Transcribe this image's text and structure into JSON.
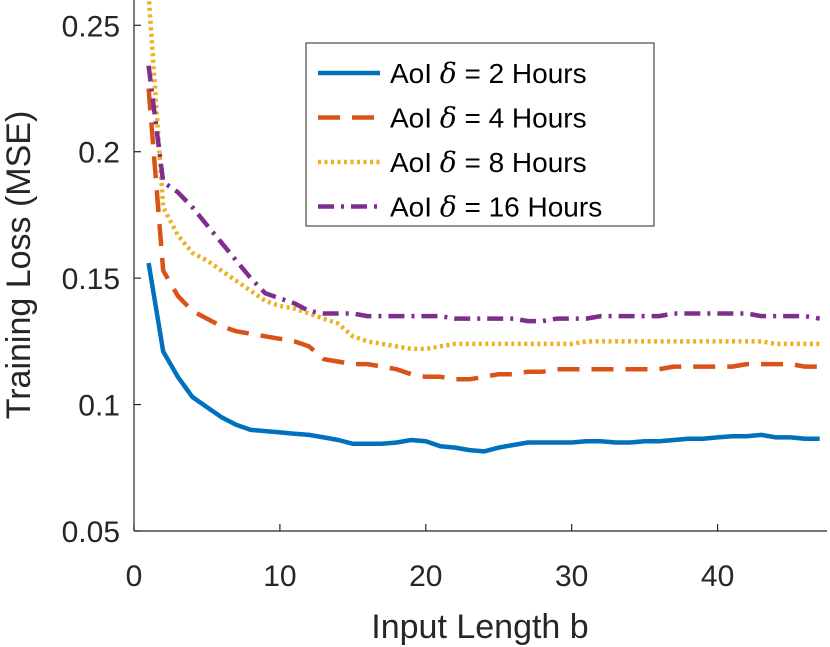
{
  "chart_data": {
    "type": "line",
    "title": "",
    "xlabel": "Input Length b",
    "ylabel": "Training Loss (MSE)",
    "xlim": [
      0,
      47.5
    ],
    "ylim": [
      0.05,
      0.26
    ],
    "xticks": [
      0,
      10,
      20,
      30,
      40
    ],
    "yticks": [
      0.05,
      0.1,
      0.15,
      0.2,
      0.25
    ],
    "xtick_labels": [
      "0",
      "10",
      "20",
      "30",
      "40"
    ],
    "ytick_labels": [
      "0.05",
      "0.1",
      "0.15",
      "0.2",
      "0.25"
    ],
    "legend_position": "top-right",
    "x": [
      1,
      2,
      3,
      4,
      5,
      6,
      7,
      8,
      9,
      10,
      11,
      12,
      13,
      14,
      15,
      16,
      17,
      18,
      19,
      20,
      21,
      22,
      23,
      24,
      25,
      26,
      27,
      28,
      29,
      30,
      31,
      32,
      33,
      34,
      35,
      36,
      37,
      38,
      39,
      40,
      41,
      42,
      43,
      44,
      45,
      46,
      47
    ],
    "series": [
      {
        "name_prefix": "AoI",
        "symbol": "δ",
        "name_suffix": "= 2 Hours",
        "color": "#0072BD",
        "dash": "solid",
        "values": [
          0.156,
          0.121,
          0.111,
          0.103,
          0.099,
          0.095,
          0.092,
          0.09,
          0.0895,
          0.089,
          0.0885,
          0.088,
          0.087,
          0.086,
          0.0845,
          0.0845,
          0.0845,
          0.085,
          0.086,
          0.0855,
          0.0835,
          0.083,
          0.082,
          0.0815,
          0.083,
          0.084,
          0.085,
          0.085,
          0.085,
          0.085,
          0.0855,
          0.0855,
          0.085,
          0.085,
          0.0855,
          0.0855,
          0.086,
          0.0865,
          0.0865,
          0.087,
          0.0875,
          0.0875,
          0.088,
          0.087,
          0.087,
          0.0865,
          0.0865
        ]
      },
      {
        "name_prefix": "AoI",
        "symbol": "δ",
        "name_suffix": "= 4 Hours",
        "color": "#D95319",
        "dash": "dashed",
        "values": [
          0.225,
          0.153,
          0.143,
          0.137,
          0.134,
          0.131,
          0.129,
          0.128,
          0.127,
          0.126,
          0.125,
          0.123,
          0.118,
          0.117,
          0.116,
          0.116,
          0.115,
          0.114,
          0.112,
          0.111,
          0.111,
          0.11,
          0.11,
          0.111,
          0.112,
          0.112,
          0.113,
          0.113,
          0.114,
          0.114,
          0.114,
          0.114,
          0.114,
          0.114,
          0.114,
          0.114,
          0.115,
          0.115,
          0.115,
          0.115,
          0.115,
          0.116,
          0.116,
          0.116,
          0.116,
          0.115,
          0.115
        ]
      },
      {
        "name_prefix": "AoI",
        "symbol": "δ",
        "name_suffix": "= 8 Hours",
        "color": "#EDB120",
        "dash": "dotted",
        "values": [
          0.262,
          0.178,
          0.167,
          0.16,
          0.157,
          0.153,
          0.149,
          0.145,
          0.141,
          0.139,
          0.138,
          0.136,
          0.134,
          0.132,
          0.127,
          0.125,
          0.124,
          0.123,
          0.122,
          0.122,
          0.123,
          0.124,
          0.124,
          0.124,
          0.124,
          0.124,
          0.124,
          0.124,
          0.124,
          0.124,
          0.125,
          0.125,
          0.125,
          0.125,
          0.125,
          0.125,
          0.125,
          0.125,
          0.125,
          0.125,
          0.125,
          0.125,
          0.125,
          0.124,
          0.124,
          0.124,
          0.124
        ]
      },
      {
        "name_prefix": "AoI",
        "symbol": "δ",
        "name_suffix": "= 16 Hours",
        "color": "#7E2F8E",
        "dash": "dashdot",
        "values": [
          0.234,
          0.188,
          0.184,
          0.178,
          0.171,
          0.164,
          0.157,
          0.15,
          0.144,
          0.142,
          0.14,
          0.137,
          0.136,
          0.136,
          0.136,
          0.135,
          0.135,
          0.135,
          0.135,
          0.135,
          0.135,
          0.134,
          0.134,
          0.134,
          0.134,
          0.134,
          0.133,
          0.133,
          0.134,
          0.134,
          0.134,
          0.135,
          0.135,
          0.135,
          0.135,
          0.135,
          0.136,
          0.136,
          0.136,
          0.136,
          0.136,
          0.136,
          0.135,
          0.135,
          0.135,
          0.135,
          0.134
        ]
      }
    ]
  }
}
